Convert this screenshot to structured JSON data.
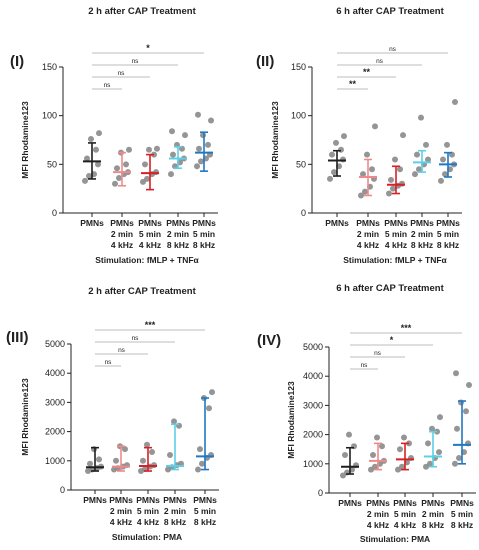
{
  "colors": {
    "axis": "#222222",
    "point": "#8a8a8a",
    "bracket": "#bdbdbd",
    "groups": [
      "#1f1f1f",
      "#ee8a8a",
      "#d81f26",
      "#5ecfe8",
      "#1f78c3"
    ]
  },
  "chart_data": [
    {
      "type": "scatter",
      "panel_label": "(I)",
      "title": "2 h after CAP Treatment",
      "xlabel": "Stimulation: fMLP + TNFα",
      "ylabel": "MFI Rhodamine123",
      "ylim": [
        0,
        150
      ],
      "yticks": [
        0,
        50,
        100,
        150
      ],
      "categories": [
        [
          "PMNs"
        ],
        [
          "PMNs",
          "2 min",
          "4 kHz"
        ],
        [
          "PMNs",
          "5 min",
          "4 kHz"
        ],
        [
          "PMNs",
          "2 min",
          "8 kHz"
        ],
        [
          "PMNs",
          "5 min",
          "8 kHz"
        ]
      ],
      "series": [
        {
          "points": [
            33,
            38,
            40,
            50,
            56,
            65,
            76,
            82
          ],
          "center": 53,
          "low": 35,
          "high": 72
        },
        {
          "points": [
            30,
            36,
            40,
            42,
            46,
            50,
            62,
            65
          ],
          "center": 42,
          "low": 28,
          "high": 62
        },
        {
          "points": [
            32,
            35,
            40,
            42,
            50,
            60,
            65,
            66
          ],
          "center": 41,
          "low": 24,
          "high": 60
        },
        {
          "points": [
            40,
            48,
            52,
            56,
            60,
            66,
            70,
            80,
            84
          ],
          "center": 56,
          "low": 46,
          "high": 68
        },
        {
          "points": [
            48,
            53,
            56,
            60,
            66,
            70,
            80,
            95,
            101
          ],
          "center": 62,
          "low": 43,
          "high": 83
        }
      ],
      "comparisons": [
        {
          "from": 0,
          "to": 1,
          "label": "ns"
        },
        {
          "from": 0,
          "to": 2,
          "label": "ns"
        },
        {
          "from": 0,
          "to": 3,
          "label": "ns"
        },
        {
          "from": 0,
          "to": 4,
          "label": "*"
        }
      ]
    },
    {
      "type": "scatter",
      "panel_label": "(II)",
      "title": "6 h after CAP Treatment",
      "xlabel": "Stimulation: fMLP + TNFα",
      "ylabel": "MFI Rhodamine123",
      "ylim": [
        0,
        150
      ],
      "yticks": [
        0,
        50,
        100,
        150
      ],
      "categories": [
        [
          "PMNs"
        ],
        [
          "PMNs",
          "2 min",
          "4 kHz"
        ],
        [
          "PMNs",
          "5 min",
          "4 kHz"
        ],
        [
          "PMNs",
          "2 min",
          "8 kHz"
        ],
        [
          "PMNs",
          "5 min",
          "8 kHz"
        ]
      ],
      "series": [
        {
          "points": [
            35,
            42,
            48,
            55,
            60,
            65,
            72,
            79
          ],
          "center": 54,
          "low": 38,
          "high": 64
        },
        {
          "points": [
            18,
            22,
            27,
            35,
            40,
            45,
            60,
            89
          ],
          "center": 37,
          "low": 18,
          "high": 55
        },
        {
          "points": [
            20,
            25,
            28,
            30,
            34,
            45,
            55,
            80
          ],
          "center": 29,
          "low": 20,
          "high": 48
        },
        {
          "points": [
            40,
            45,
            50,
            55,
            60,
            70,
            98
          ],
          "center": 52,
          "low": 42,
          "high": 64
        },
        {
          "points": [
            33,
            40,
            45,
            50,
            55,
            60,
            70,
            114
          ],
          "center": 50,
          "low": 37,
          "high": 62
        }
      ],
      "comparisons": [
        {
          "from": 0,
          "to": 1,
          "label": "**"
        },
        {
          "from": 0,
          "to": 2,
          "label": "**"
        },
        {
          "from": 0,
          "to": 3,
          "label": "ns"
        },
        {
          "from": 0,
          "to": 4,
          "label": "ns"
        }
      ]
    },
    {
      "type": "scatter",
      "panel_label": "(III)",
      "title": "2 h after CAP Treatment",
      "xlabel": "Stimulation: PMA",
      "ylabel": "MFI Rhodamine123",
      "ylim": [
        0,
        5000
      ],
      "yticks": [
        0,
        1000,
        2000,
        3000,
        4000,
        5000
      ],
      "categories": [
        [
          "PMNs"
        ],
        [
          "PMNs",
          "2 min",
          "4 kHz"
        ],
        [
          "PMNs",
          "5 min",
          "4 kHz"
        ],
        [
          "PMNs",
          "2 min",
          "8 kHz"
        ],
        [
          "PMNs",
          "5 min",
          "8 kHz"
        ]
      ],
      "series": [
        {
          "points": [
            650,
            700,
            750,
            800,
            900,
            1050,
            1400
          ],
          "center": 780,
          "low": 650,
          "high": 1450
        },
        {
          "points": [
            700,
            750,
            800,
            850,
            1000,
            1400,
            1500
          ],
          "center": 800,
          "low": 650,
          "high": 1500
        },
        {
          "points": [
            650,
            720,
            800,
            850,
            1000,
            1300,
            1550
          ],
          "center": 820,
          "low": 650,
          "high": 1450
        },
        {
          "points": [
            700,
            780,
            850,
            900,
            1200,
            2200,
            2350
          ],
          "center": 820,
          "low": 700,
          "high": 2250
        },
        {
          "points": [
            700,
            900,
            1100,
            1200,
            1400,
            2800,
            3150,
            3350
          ],
          "center": 1150,
          "low": 700,
          "high": 3150
        }
      ],
      "comparisons": [
        {
          "from": 0,
          "to": 1,
          "label": "ns"
        },
        {
          "from": 0,
          "to": 2,
          "label": "ns"
        },
        {
          "from": 0,
          "to": 3,
          "label": "ns"
        },
        {
          "from": 0,
          "to": 4,
          "label": "***"
        }
      ]
    },
    {
      "type": "scatter",
      "panel_label": "(IV)",
      "title": "6 h after CAP Treatment",
      "xlabel": "Stimulation: PMA",
      "ylabel": "MFI Rhodamine123",
      "ylim": [
        0,
        5000
      ],
      "yticks": [
        0,
        1000,
        2000,
        3000,
        4000,
        5000
      ],
      "categories": [
        [
          "PMNs"
        ],
        [
          "PMNs",
          "2 min",
          "4 kHz"
        ],
        [
          "PMNs",
          "5 min",
          "4 kHz"
        ],
        [
          "PMNs",
          "2 min",
          "8 kHz"
        ],
        [
          "PMNs",
          "5 min",
          "8 kHz"
        ]
      ],
      "series": [
        {
          "points": [
            600,
            700,
            800,
            950,
            1300,
            1600,
            2000
          ],
          "center": 900,
          "low": 650,
          "high": 1550
        },
        {
          "points": [
            800,
            900,
            1000,
            1100,
            1300,
            1600,
            1900
          ],
          "center": 1100,
          "low": 800,
          "high": 1700
        },
        {
          "points": [
            800,
            900,
            1050,
            1200,
            1500,
            1700,
            1900
          ],
          "center": 1150,
          "low": 800,
          "high": 1700
        },
        {
          "points": [
            900,
            1000,
            1200,
            1400,
            1700,
            2100,
            2200,
            2600
          ],
          "center": 1250,
          "low": 900,
          "high": 2100
        },
        {
          "points": [
            1000,
            1200,
            1400,
            1700,
            2200,
            2800,
            3100,
            3700,
            4100
          ],
          "center": 1650,
          "low": 1000,
          "high": 3150
        }
      ],
      "comparisons": [
        {
          "from": 0,
          "to": 1,
          "label": "ns"
        },
        {
          "from": 0,
          "to": 2,
          "label": "ns"
        },
        {
          "from": 0,
          "to": 3,
          "label": "*"
        },
        {
          "from": 0,
          "to": 4,
          "label": "***"
        }
      ]
    }
  ]
}
